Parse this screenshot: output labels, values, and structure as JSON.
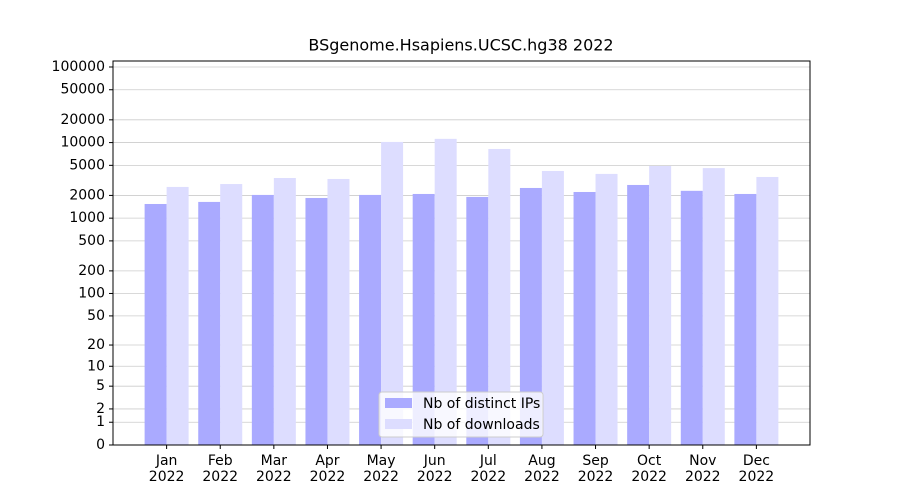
{
  "chart_data": {
    "type": "bar",
    "title": "BSgenome.Hsapiens.UCSC.hg38 2022",
    "categories": [
      "Jan 2022",
      "Feb 2022",
      "Mar 2022",
      "Apr 2022",
      "May 2022",
      "Jun 2022",
      "Jul 2022",
      "Aug 2022",
      "Sep 2022",
      "Oct 2022",
      "Nov 2022",
      "Dec 2022"
    ],
    "series": [
      {
        "name": "Nb of distinct IPs",
        "color": "#aaaaff",
        "values": [
          1540,
          1640,
          2030,
          1850,
          2030,
          2090,
          1910,
          2510,
          2220,
          2750,
          2300,
          2090
        ]
      },
      {
        "name": "Nb of downloads",
        "color": "#ddddff",
        "values": [
          2590,
          2830,
          3400,
          3300,
          10200,
          11200,
          8230,
          4210,
          3850,
          4900,
          4600,
          3510
        ]
      }
    ],
    "yscale": "log1p",
    "ylim": [
      0,
      120000
    ],
    "yticks": [
      0,
      1,
      2,
      5,
      10,
      20,
      50,
      100,
      200,
      500,
      1000,
      2000,
      5000,
      10000,
      20000,
      50000,
      100000
    ],
    "grid": true,
    "legend": "lower center"
  }
}
